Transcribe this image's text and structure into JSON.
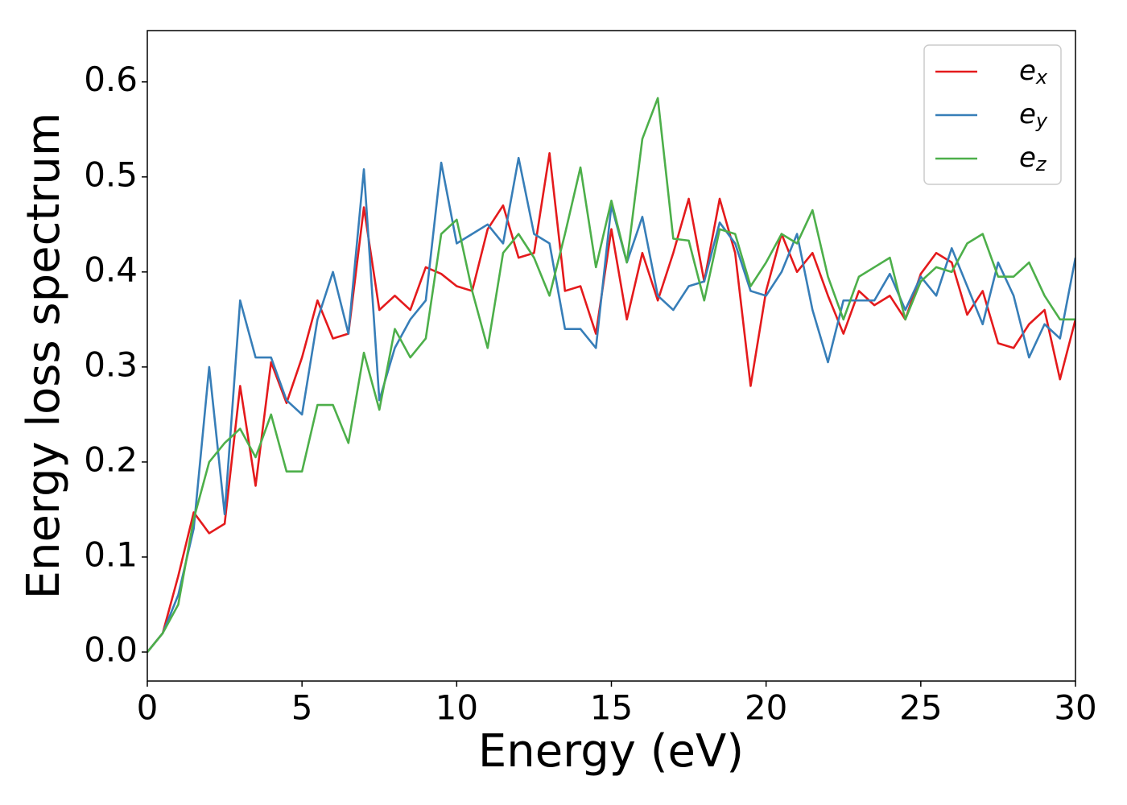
{
  "chart_data": {
    "type": "line",
    "xlabel": "Energy (eV)",
    "ylabel": "Energy loss spectrum",
    "x": [
      0,
      0.5,
      1,
      1.5,
      2,
      2.5,
      3,
      3.5,
      4,
      4.5,
      5,
      5.5,
      6,
      6.5,
      7,
      7.5,
      8,
      8.5,
      9,
      9.5,
      10,
      10.5,
      11,
      11.5,
      12,
      12.5,
      13,
      13.5,
      14,
      14.5,
      15,
      15.5,
      16,
      16.5,
      17,
      17.5,
      18,
      18.5,
      19,
      19.5,
      20,
      20.5,
      21,
      21.5,
      22,
      22.5,
      23,
      23.5,
      24,
      24.5,
      25,
      25.5,
      26,
      26.5,
      27,
      27.5,
      28,
      28.5,
      29,
      29.5,
      30
    ],
    "series": [
      {
        "name": "e",
        "subscript": "x",
        "color": "#e41a1c",
        "values": [
          0,
          0.02,
          0.08,
          0.147,
          0.125,
          0.135,
          0.28,
          0.175,
          0.305,
          0.262,
          0.31,
          0.37,
          0.33,
          0.335,
          0.468,
          0.36,
          0.375,
          0.36,
          0.405,
          0.398,
          0.385,
          0.38,
          0.445,
          0.47,
          0.415,
          0.42,
          0.525,
          0.38,
          0.385,
          0.335,
          0.445,
          0.35,
          0.42,
          0.37,
          0.42,
          0.477,
          0.39,
          0.477,
          0.42,
          0.28,
          0.38,
          0.44,
          0.4,
          0.42,
          0.375,
          0.335,
          0.38,
          0.365,
          0.375,
          0.35,
          0.398,
          0.42,
          0.41,
          0.355,
          0.38,
          0.325,
          0.32,
          0.345,
          0.36,
          0.287,
          0.35
        ]
      },
      {
        "name": "e",
        "subscript": "y",
        "color": "#377eb8",
        "values": [
          0,
          0.02,
          0.06,
          0.13,
          0.3,
          0.145,
          0.37,
          0.31,
          0.31,
          0.265,
          0.25,
          0.35,
          0.4,
          0.335,
          0.508,
          0.265,
          0.32,
          0.35,
          0.37,
          0.515,
          0.43,
          0.44,
          0.45,
          0.43,
          0.52,
          0.44,
          0.43,
          0.34,
          0.34,
          0.32,
          0.47,
          0.41,
          0.458,
          0.375,
          0.36,
          0.385,
          0.39,
          0.452,
          0.43,
          0.38,
          0.375,
          0.4,
          0.44,
          0.36,
          0.305,
          0.37,
          0.37,
          0.37,
          0.398,
          0.36,
          0.395,
          0.375,
          0.425,
          0.385,
          0.345,
          0.41,
          0.375,
          0.31,
          0.345,
          0.33,
          0.415
        ]
      },
      {
        "name": "e",
        "subscript": "z",
        "color": "#4daf4a",
        "values": [
          0,
          0.02,
          0.05,
          0.14,
          0.2,
          0.22,
          0.235,
          0.205,
          0.25,
          0.19,
          0.19,
          0.26,
          0.26,
          0.22,
          0.315,
          0.255,
          0.34,
          0.31,
          0.33,
          0.44,
          0.455,
          0.38,
          0.32,
          0.42,
          0.44,
          0.415,
          0.375,
          0.44,
          0.51,
          0.405,
          0.475,
          0.41,
          0.54,
          0.583,
          0.435,
          0.433,
          0.37,
          0.445,
          0.44,
          0.385,
          0.41,
          0.44,
          0.43,
          0.465,
          0.395,
          0.35,
          0.395,
          0.405,
          0.415,
          0.35,
          0.39,
          0.405,
          0.4,
          0.43,
          0.44,
          0.395,
          0.395,
          0.41,
          0.375,
          0.35,
          0.35
        ]
      }
    ],
    "xlim": [
      0,
      30
    ],
    "xticks": [
      0,
      5,
      10,
      15,
      20,
      25,
      30
    ],
    "ylim": [
      -0.0305,
      0.654
    ],
    "yticks": [
      {
        "value": 0,
        "label": "0.0"
      },
      0.1,
      0.2,
      0.3,
      0.4,
      0.5,
      0.6
    ],
    "legend": "upper right",
    "grid": false
  }
}
